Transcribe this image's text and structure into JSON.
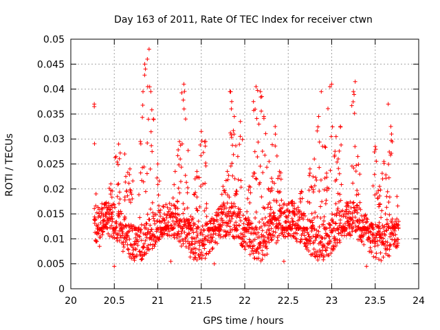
{
  "chart_data": {
    "type": "scatter",
    "title": "Day 163 of 2011, Rate Of TEC Index for receiver ctwn",
    "xlabel": "GPS time / hours",
    "ylabel": "ROTI / TECUs",
    "xlim": [
      20,
      24
    ],
    "ylim": [
      0,
      0.05
    ],
    "xticks": [
      "20",
      "20.5",
      "21",
      "21.5",
      "22",
      "22.5",
      "23",
      "23.5",
      "24"
    ],
    "yticks": [
      "0",
      "0.005",
      "0.01",
      "0.015",
      "0.02",
      "0.025",
      "0.03",
      "0.035",
      "0.04",
      "0.045",
      "0.05"
    ],
    "grid": true,
    "marker": "+",
    "color": "#ff0000",
    "series": [
      {
        "name": "ROTI",
        "x_range": [
          20.27,
          23.77
        ],
        "sample_interval_hours": 0.0028,
        "points": [
          [
            20.27,
            0.037
          ],
          [
            20.27,
            0.0365
          ],
          [
            20.29,
            0.019
          ],
          [
            20.3,
            0.0095
          ],
          [
            20.33,
            0.0085
          ],
          [
            20.4,
            0.015
          ],
          [
            20.46,
            0.021
          ],
          [
            20.5,
            0.0045
          ],
          [
            20.52,
            0.0265
          ],
          [
            20.55,
            0.029
          ],
          [
            20.6,
            0.0075
          ],
          [
            20.62,
            0.027
          ],
          [
            20.68,
            0.024
          ],
          [
            20.75,
            0.011
          ],
          [
            20.8,
            0.0295
          ],
          [
            20.83,
            0.0395
          ],
          [
            20.85,
            0.045
          ],
          [
            20.88,
            0.046
          ],
          [
            20.9,
            0.048
          ],
          [
            20.92,
            0.0395
          ],
          [
            20.95,
            0.034
          ],
          [
            21.0,
            0.025
          ],
          [
            21.05,
            0.011
          ],
          [
            21.1,
            0.0125
          ],
          [
            21.15,
            0.0055
          ],
          [
            21.2,
            0.0235
          ],
          [
            21.25,
            0.0295
          ],
          [
            21.3,
            0.041
          ],
          [
            21.32,
            0.034
          ],
          [
            21.38,
            0.0145
          ],
          [
            21.45,
            0.0235
          ],
          [
            21.5,
            0.0315
          ],
          [
            21.55,
            0.0295
          ],
          [
            21.6,
            0.0075
          ],
          [
            21.65,
            0.005
          ],
          [
            21.7,
            0.0115
          ],
          [
            21.75,
            0.0205
          ],
          [
            21.8,
            0.0235
          ],
          [
            21.83,
            0.0395
          ],
          [
            21.85,
            0.0375
          ],
          [
            21.88,
            0.0345
          ],
          [
            21.92,
            0.0265
          ],
          [
            21.95,
            0.0335
          ],
          [
            22.0,
            0.0105
          ],
          [
            22.05,
            0.0205
          ],
          [
            22.1,
            0.0375
          ],
          [
            22.13,
            0.0405
          ],
          [
            22.18,
            0.0395
          ],
          [
            22.22,
            0.0345
          ],
          [
            22.28,
            0.0255
          ],
          [
            22.35,
            0.0325
          ],
          [
            22.4,
            0.0235
          ],
          [
            22.45,
            0.0055
          ],
          [
            22.5,
            0.0135
          ],
          [
            22.55,
            0.0175
          ],
          [
            22.6,
            0.0095
          ],
          [
            22.65,
            0.0195
          ],
          [
            22.7,
            0.0085
          ],
          [
            22.75,
            0.024
          ],
          [
            22.8,
            0.026
          ],
          [
            22.85,
            0.0345
          ],
          [
            22.88,
            0.0395
          ],
          [
            22.92,
            0.0285
          ],
          [
            22.98,
            0.0405
          ],
          [
            23.0,
            0.041
          ],
          [
            23.05,
            0.0305
          ],
          [
            23.1,
            0.0325
          ],
          [
            23.15,
            0.0115
          ],
          [
            23.2,
            0.0155
          ],
          [
            23.25,
            0.0395
          ],
          [
            23.27,
            0.0415
          ],
          [
            23.3,
            0.0265
          ],
          [
            23.35,
            0.0095
          ],
          [
            23.4,
            0.0045
          ],
          [
            23.45,
            0.013
          ],
          [
            23.5,
            0.0285
          ],
          [
            23.55,
            0.0205
          ],
          [
            23.6,
            0.0255
          ],
          [
            23.65,
            0.037
          ],
          [
            23.68,
            0.0325
          ],
          [
            23.72,
            0.0125
          ],
          [
            23.75,
            0.0185
          ],
          [
            23.77,
            0.0135
          ]
        ]
      }
    ]
  }
}
